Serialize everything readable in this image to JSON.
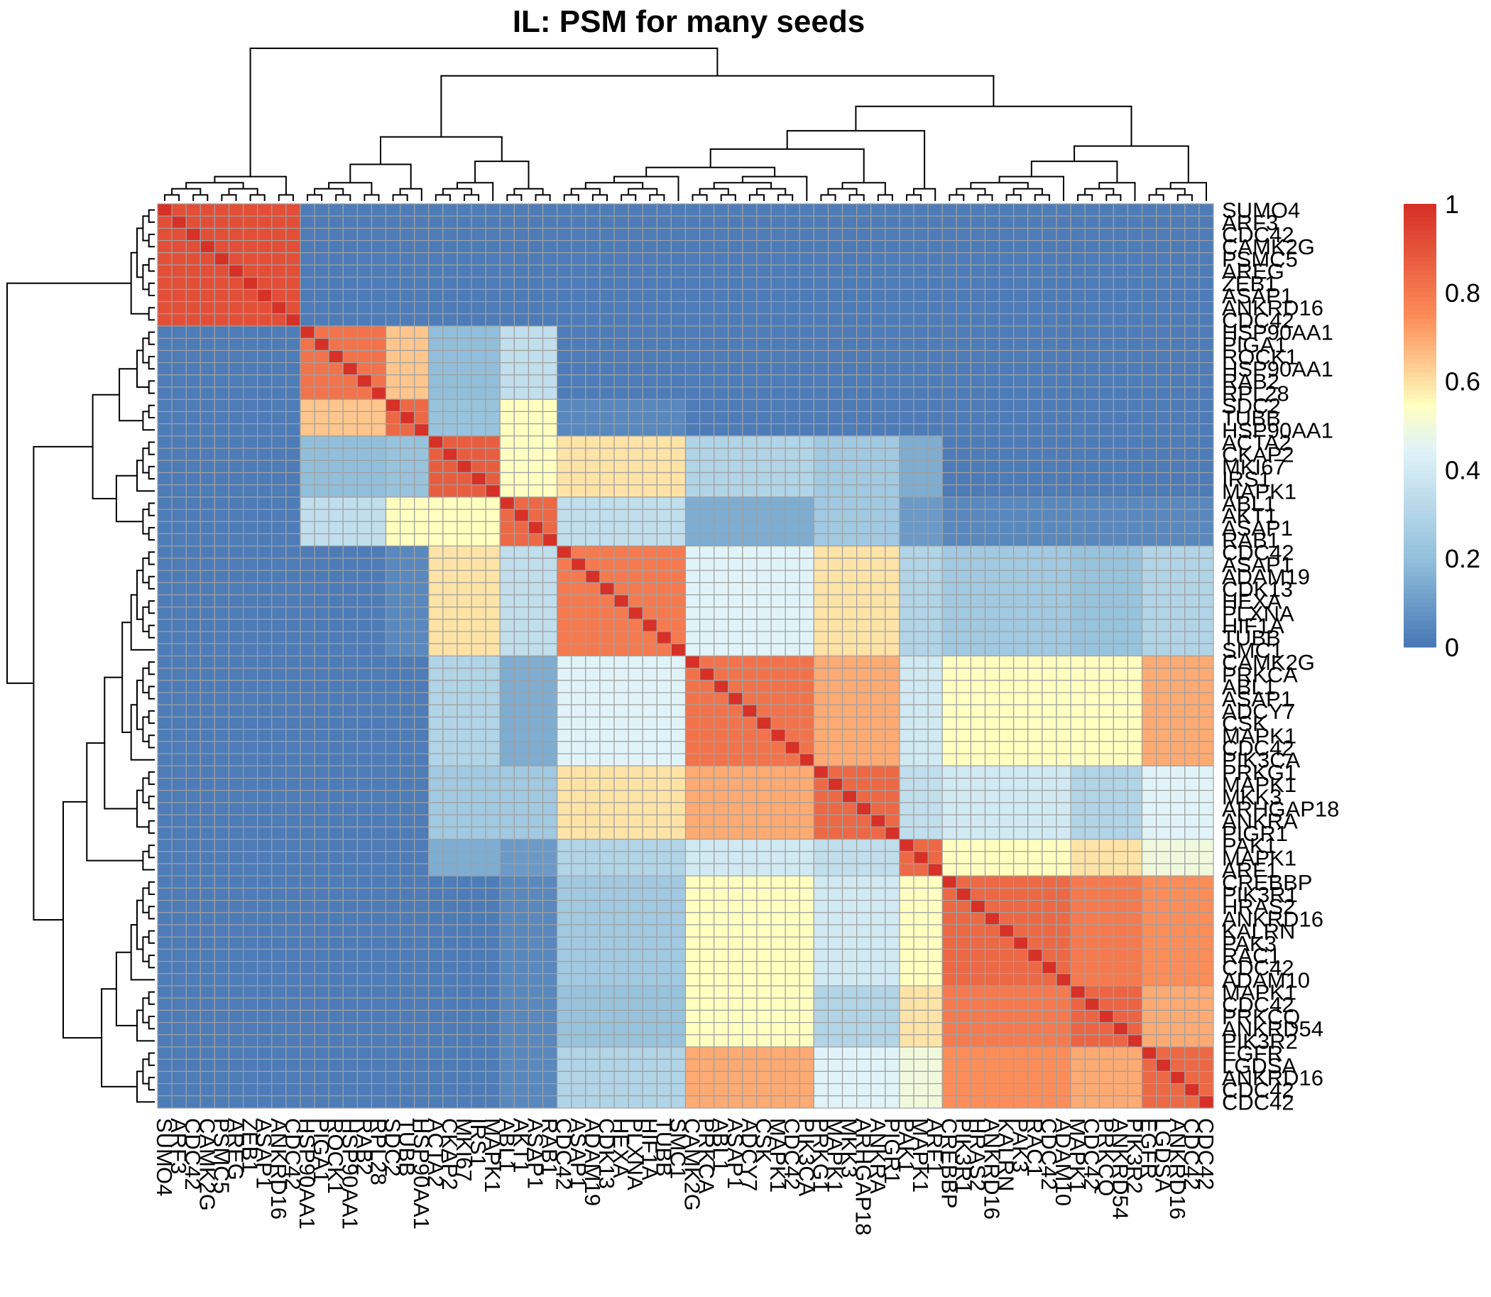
{
  "chart_data": {
    "type": "heatmap",
    "title": "IL: PSM for many seeds",
    "xlabel": "",
    "ylabel": "",
    "row_labels": [
      "SUMO4",
      "ARF3",
      "CDC42",
      "CAMK2G",
      "PSMC5",
      "AREG",
      "ZEB1",
      "ASAP1",
      "ANKRD16",
      "CDC42",
      "HSP90AA1",
      "PIGA1",
      "ROCK1",
      "HSP90AA1",
      "RAB2",
      "RPL28",
      "SDC2",
      "TUBB",
      "HSP90AA1",
      "ACTA2",
      "CKAP2",
      "MKI67",
      "IRS1",
      "MAPK1",
      "ABL1",
      "AKT1",
      "ASAP1",
      "RAB1",
      "CDC42",
      "ASAP1",
      "ADAM19",
      "CDK13",
      "HEXA",
      "PLXNA",
      "HIF1A",
      "TUBB",
      "SMC1",
      "CAMK2G",
      "PRKCA",
      "ABL1",
      "ASAP1",
      "ADCY7",
      "CSK",
      "MAPK1",
      "CDC42",
      "PIK3CA",
      "PRKG1",
      "MAPK1",
      "MKK3",
      "ARHGAP18",
      "ANKRA",
      "PIGR1",
      "PAK1",
      "MAPK1",
      "ARF1",
      "CREBBP",
      "PIK3R1",
      "HRAS2",
      "ANKRD16",
      "KALRN",
      "PAK3",
      "RAC1",
      "CDC42",
      "ADAM10",
      "MAPK1",
      "CDC42",
      "PRKCQ",
      "ANKRD54",
      "PIK3R2",
      "EGFR",
      "LGDSA",
      "ANKRD16",
      "CDC42",
      "CDC42"
    ],
    "row_labels_visible": [
      "SUMO4",
      "ARF3",
      "CDC42",
      "CAMK2G",
      "PSMC5",
      "AREG",
      "ZEB1",
      "ASAP1",
      "ANKRD16",
      "CDC42",
      "HSP90AA1",
      "PIGA1"
    ],
    "col_labels_visible": [
      "SUMO4",
      "ARF3",
      "CDC42",
      "CAMK2G",
      "PSMC5",
      "HSP90AA1",
      "HSP90AA1",
      "MKI67",
      "ABL1",
      "ASAP1",
      "RAB1",
      "ADAM19",
      "CDK13",
      "HIF1A",
      "SMC1",
      "CAMK2G",
      "PRKCA",
      "ADCY7",
      "MAPK1",
      "ARHGAP18",
      "PAK1",
      "CREBBP",
      "ANKRD16",
      "RAC1",
      "ADAM10",
      "PRKCQ",
      "ANKRD54",
      "CDC42",
      "ANKRD16",
      "CDC42"
    ],
    "n": 74,
    "row_labels_shown": [
      "SUMO4",
      "ARF3",
      "CDC42",
      "CAMK2G",
      "PSMC5",
      "AREG",
      "ZEB1",
      "ASAP1",
      "ANKRD16",
      "CDC42",
      "HSP90AA1",
      "PIGA1",
      "ROCK1",
      "HSP90AA1",
      "RAB2",
      "RPL28",
      "SDC2",
      "TUBB",
      "HSP90AA1",
      "ACTA2",
      "CKAP2",
      "MKI67",
      "IRS1",
      "MAPK1",
      "ABL1",
      "AKT1",
      "ASAP1",
      "RAB1",
      "CDC42",
      "ASAP1",
      "ADAM19",
      "CDK13",
      "HEXA",
      "PLXNA",
      "HIF1A",
      "TUBB",
      "SMC1",
      "CAMK2G",
      "PRKCA",
      "ABL1",
      "ASAP1",
      "ADCY7",
      "CSK",
      "MAPK1",
      "CDC42",
      "PIK3CA",
      "PRKG1",
      "MAPK1",
      "MKK3",
      "ARHGAP18",
      "ANKRA",
      "PIGR1",
      "PAK1",
      "MAPK1",
      "ARF1",
      "CREBBP",
      "PIK3R1",
      "HRAS2",
      "ANKRD16",
      "KALRN",
      "PAK3",
      "RAC1",
      "CDC42",
      "ADAM10",
      "MAPK1",
      "CDC42",
      "PRKCQ",
      "ANKRD54",
      "PIK3R2",
      "EGFR",
      "LGDSA",
      "ANKRD16",
      "CDC42",
      "CDC42"
    ],
    "clusters": [
      {
        "start": 0,
        "end": 9
      },
      {
        "start": 10,
        "end": 15
      },
      {
        "start": 16,
        "end": 18
      },
      {
        "start": 19,
        "end": 23
      },
      {
        "start": 24,
        "end": 27
      },
      {
        "start": 28,
        "end": 36
      },
      {
        "start": 37,
        "end": 45
      },
      {
        "start": 46,
        "end": 51
      },
      {
        "start": 52,
        "end": 54
      },
      {
        "start": 55,
        "end": 63
      },
      {
        "start": 64,
        "end": 68
      },
      {
        "start": 69,
        "end": 73
      }
    ],
    "block_values": [
      [
        0.92,
        0.02,
        0.02,
        0.02,
        0.02,
        0.02,
        0.02,
        0.02,
        0.02,
        0.02,
        0.02,
        0.02
      ],
      [
        0.02,
        0.82,
        0.65,
        0.2,
        0.35,
        0.02,
        0.02,
        0.02,
        0.02,
        0.02,
        0.02,
        0.02
      ],
      [
        0.02,
        0.65,
        0.85,
        0.22,
        0.55,
        0.05,
        0.02,
        0.02,
        0.02,
        0.02,
        0.02,
        0.02
      ],
      [
        0.02,
        0.2,
        0.22,
        0.88,
        0.55,
        0.6,
        0.3,
        0.25,
        0.15,
        0.02,
        0.02,
        0.02
      ],
      [
        0.02,
        0.35,
        0.55,
        0.55,
        0.85,
        0.35,
        0.15,
        0.25,
        0.1,
        0.05,
        0.05,
        0.05
      ],
      [
        0.02,
        0.02,
        0.05,
        0.6,
        0.35,
        0.8,
        0.45,
        0.6,
        0.3,
        0.25,
        0.22,
        0.3
      ],
      [
        0.02,
        0.02,
        0.02,
        0.3,
        0.15,
        0.45,
        0.82,
        0.7,
        0.4,
        0.55,
        0.55,
        0.7
      ],
      [
        0.02,
        0.02,
        0.02,
        0.25,
        0.25,
        0.6,
        0.7,
        0.85,
        0.35,
        0.4,
        0.3,
        0.45
      ],
      [
        0.02,
        0.02,
        0.02,
        0.15,
        0.1,
        0.3,
        0.4,
        0.35,
        0.85,
        0.55,
        0.6,
        0.5
      ],
      [
        0.02,
        0.02,
        0.02,
        0.02,
        0.05,
        0.25,
        0.55,
        0.4,
        0.55,
        0.85,
        0.8,
        0.75
      ],
      [
        0.02,
        0.02,
        0.02,
        0.02,
        0.05,
        0.22,
        0.55,
        0.3,
        0.6,
        0.8,
        0.86,
        0.7
      ],
      [
        0.02,
        0.02,
        0.02,
        0.02,
        0.05,
        0.3,
        0.7,
        0.45,
        0.5,
        0.75,
        0.7,
        0.85
      ]
    ],
    "legend": {
      "ticks": [
        0,
        0.2,
        0.4,
        0.6,
        0.8,
        1
      ],
      "position": "right"
    },
    "colors": {
      "low": "#4575b4",
      "mid": "#ffffbf",
      "high": "#d73027",
      "grid": "#a0a0a0"
    }
  }
}
